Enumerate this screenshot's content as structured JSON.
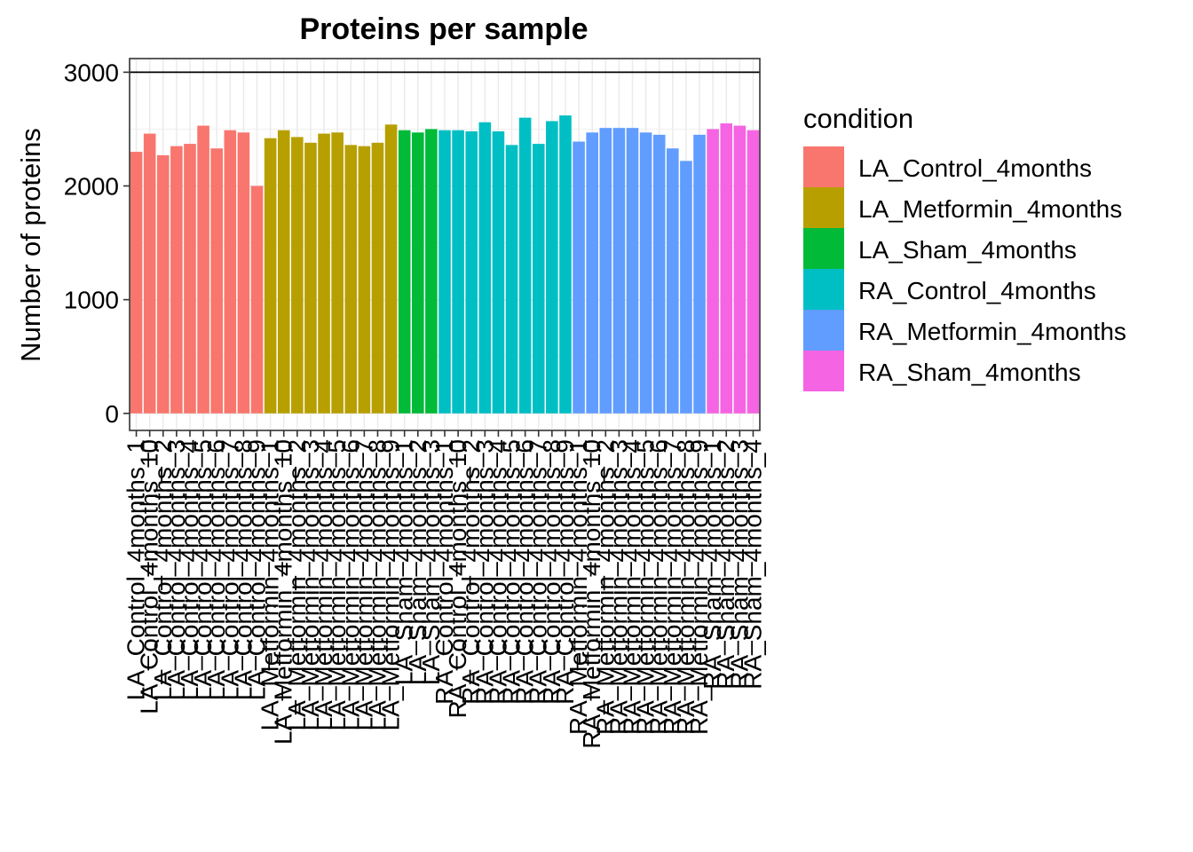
{
  "chart_data": {
    "type": "bar",
    "title": "Proteins per sample",
    "xlabel": "",
    "ylabel": "Number of proteins",
    "ylim": [
      -150,
      3120
    ],
    "yticks": [
      0,
      1000,
      2000,
      3000
    ],
    "reference_line": 3000,
    "grid": true,
    "legend_position": "right",
    "legend_title": "condition",
    "series": [
      {
        "name": "LA_Control_4months",
        "color": "#F8766D",
        "samples": [
          "LA_Control_4months_1",
          "LA_Control_4months_10",
          "LA_Control_4months_2",
          "LA_Control_4months_3",
          "LA_Control_4months_4",
          "LA_Control_4months_5",
          "LA_Control_4months_6",
          "LA_Control_4months_7",
          "LA_Control_4months_8",
          "LA_Control_4months_9"
        ],
        "values": [
          2300,
          2460,
          2270,
          2350,
          2370,
          2530,
          2330,
          2490,
          2470,
          2000
        ]
      },
      {
        "name": "LA_Metformin_4months",
        "color": "#B79F00",
        "samples": [
          "LA_Metformin_4months_1",
          "LA_Metformin_4months_10",
          "LA_Metformin_4months_2",
          "LA_Metformin_4months_3",
          "LA_Metformin_4months_4",
          "LA_Metformin_4months_5",
          "LA_Metformin_4months_6",
          "LA_Metformin_4months_7",
          "LA_Metformin_4months_8",
          "LA_Metformin_4months_9"
        ],
        "values": [
          2420,
          2490,
          2430,
          2380,
          2460,
          2470,
          2360,
          2350,
          2380,
          2540
        ]
      },
      {
        "name": "LA_Sham_4months",
        "color": "#00BA38",
        "samples": [
          "LA_Sham_4months_1",
          "LA_Sham_4months_2",
          "LA_Sham_4months_3"
        ],
        "values": [
          2490,
          2470,
          2500
        ]
      },
      {
        "name": "RA_Control_4months",
        "color": "#00BFC4",
        "samples": [
          "RA_Control_4months_1",
          "RA_Control_4months_10",
          "RA_Control_4months_2",
          "RA_Control_4months_3",
          "RA_Control_4months_4",
          "RA_Control_4months_5",
          "RA_Control_4months_6",
          "RA_Control_4months_7",
          "RA_Control_4months_8",
          "RA_Control_4months_9"
        ],
        "values": [
          2490,
          2490,
          2480,
          2560,
          2480,
          2360,
          2600,
          2370,
          2570,
          2620
        ]
      },
      {
        "name": "RA_Metformin_4months",
        "color": "#619CFF",
        "samples": [
          "RA_Metformin_4months_1",
          "RA_Metformin_4months_10",
          "RA_Metformin_4months_2",
          "RA_Metformin_4months_3",
          "RA_Metformin_4months_4",
          "RA_Metformin_4months_5",
          "RA_Metformin_4months_6",
          "RA_Metformin_4months_7",
          "RA_Metformin_4months_8",
          "RA_Metformin_4months_9"
        ],
        "values": [
          2390,
          2470,
          2510,
          2510,
          2510,
          2470,
          2450,
          2330,
          2220,
          2450
        ]
      },
      {
        "name": "RA_Sham_4months",
        "color": "#F564E3",
        "samples": [
          "RA_Sham_4months_1",
          "RA_Sham_4months_2",
          "RA_Sham_4months_3",
          "RA_Sham_4months_4"
        ],
        "values": [
          2500,
          2550,
          2530,
          2490
        ]
      }
    ]
  }
}
